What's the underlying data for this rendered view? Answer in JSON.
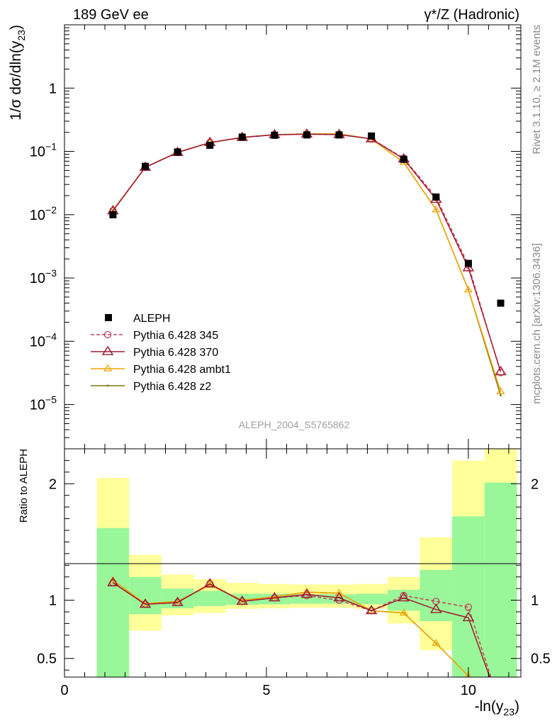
{
  "header": {
    "left": "189 GeV ee",
    "right": "γ*/Z (Hadronic)"
  },
  "side_text": {
    "rivet": "Rivet 3.1.10, ≥ 2.1M events",
    "mcplots": "mcplots.cern.ch [arXiv:1306.3436]"
  },
  "watermark": "ALEPH_2004_S5765862",
  "colors": {
    "data": "#000000",
    "p345": "#c0405a",
    "p370": "#a01830",
    "ambt1": "#f0a500",
    "z2": "#7a7a10",
    "band_inner": "#99f799",
    "band_outer": "#ffff99"
  },
  "chart_data": [
    {
      "type": "line",
      "name": "main",
      "ylabel": "1/σ  dσ/dln(y23)",
      "ylabel_main": "1/σ  dσ/dln(y",
      "ylabel_sub": "23",
      "ylabel_close": ")",
      "yscale": "log",
      "xlim": [
        0,
        11.3
      ],
      "ylim": [
        2e-06,
        10
      ],
      "ytick_labels": [
        {
          "v": 1e-05,
          "base": "10",
          "exp": "−5"
        },
        {
          "v": 0.0001,
          "base": "10",
          "exp": "−4"
        },
        {
          "v": 0.001,
          "base": "10",
          "exp": "−3"
        },
        {
          "v": 0.01,
          "base": "10",
          "exp": "−2"
        },
        {
          "v": 0.1,
          "base": "10",
          "exp": "−1"
        },
        {
          "v": 1,
          "base": "1",
          "exp": ""
        }
      ],
      "legend": [
        {
          "key": "data",
          "label": "ALEPH"
        },
        {
          "key": "p345",
          "label": "Pythia 6.428 345"
        },
        {
          "key": "p370",
          "label": "Pythia 6.428 370"
        },
        {
          "key": "ambt1",
          "label": "Pythia 6.428 ambt1"
        },
        {
          "key": "z2",
          "label": "Pythia 6.428 z2"
        }
      ],
      "data": {
        "x": [
          1.2,
          2.0,
          2.8,
          3.6,
          4.4,
          5.2,
          6.0,
          6.8,
          7.6,
          8.4,
          9.2,
          10.0,
          10.8
        ],
        "y": [
          0.01,
          0.058,
          0.098,
          0.125,
          0.168,
          0.18,
          0.182,
          0.182,
          0.175,
          0.075,
          0.019,
          0.0017,
          0.0004
        ],
        "ylo": [
          0.0098,
          0.057,
          0.097,
          0.124,
          0.166,
          0.178,
          0.18,
          0.18,
          0.173,
          0.073,
          0.018,
          0.0016,
          0.00036
        ],
        "yhi": [
          0.0102,
          0.059,
          0.099,
          0.126,
          0.17,
          0.182,
          0.184,
          0.184,
          0.177,
          0.077,
          0.02,
          0.0018,
          0.00044
        ]
      },
      "series": [
        {
          "key": "p345",
          "marker": "circle",
          "dash": true,
          "x": [
            1.2,
            2.0,
            2.8,
            3.6,
            4.4,
            5.2,
            6.0,
            6.8,
            7.6,
            8.4,
            9.2,
            10.0,
            10.8
          ],
          "y": [
            0.0115,
            0.056,
            0.096,
            0.138,
            0.166,
            0.183,
            0.187,
            0.184,
            0.158,
            0.078,
            0.0188,
            0.0016,
            3.2e-05
          ]
        },
        {
          "key": "p370",
          "marker": "triangle",
          "x": [
            1.2,
            2.0,
            2.8,
            3.6,
            4.4,
            5.2,
            6.0,
            6.8,
            7.6,
            8.4,
            9.2,
            10.0,
            10.8
          ],
          "y": [
            0.0115,
            0.056,
            0.096,
            0.138,
            0.166,
            0.183,
            0.187,
            0.184,
            0.158,
            0.076,
            0.0175,
            0.00145,
            3.3e-05
          ]
        },
        {
          "key": "ambt1",
          "marker": "smalltriangle",
          "x": [
            1.2,
            2.0,
            2.8,
            3.6,
            4.4,
            5.2,
            6.0,
            6.8,
            7.6,
            8.4,
            9.2,
            10.0,
            10.8
          ],
          "y": [
            0.0117,
            0.056,
            0.097,
            0.137,
            0.167,
            0.184,
            0.189,
            0.189,
            0.157,
            0.067,
            0.012,
            0.00065,
            1.6e-05
          ]
        },
        {
          "key": "z2",
          "marker": "dot",
          "x": [
            1.2,
            2.0,
            2.8,
            3.6,
            4.4,
            5.2,
            6.0,
            6.8,
            7.6,
            8.4,
            9.2,
            10.0,
            10.8
          ],
          "y": [
            0.0117,
            0.056,
            0.097,
            0.137,
            0.167,
            0.184,
            0.189,
            0.189,
            0.157,
            0.067,
            0.012,
            0.00065,
            1.4e-05
          ]
        }
      ]
    },
    {
      "type": "line",
      "name": "ratio",
      "ylabel": "Ratio to ALEPH",
      "xlabel_main": "-ln(y",
      "xlabel_sub": "23",
      "xlabel_close": ")",
      "xlim": [
        0,
        11.3
      ],
      "ylim": [
        0.34,
        2.3
      ],
      "xticks": [
        0,
        5,
        10
      ],
      "yticks": [
        0.5,
        1,
        2
      ],
      "ytick_labels": [
        "0.5",
        "1",
        "2"
      ],
      "bands": {
        "edges": [
          0.8,
          1.6,
          2.4,
          3.2,
          4.0,
          4.8,
          5.6,
          6.4,
          7.2,
          8.0,
          8.8,
          9.6,
          10.4,
          11.2
        ],
        "inner_lo": [
          0.34,
          0.88,
          0.93,
          0.95,
          0.96,
          0.965,
          0.97,
          0.97,
          0.965,
          0.91,
          0.82,
          0.34,
          0.34
        ],
        "inner_hi": [
          1.62,
          1.2,
          1.1,
          1.08,
          1.055,
          1.055,
          1.05,
          1.05,
          1.055,
          1.09,
          1.26,
          1.72,
          2.01
        ],
        "outer_lo": [
          0.34,
          0.74,
          0.87,
          0.89,
          0.925,
          0.93,
          0.935,
          0.935,
          0.925,
          0.8,
          0.57,
          0.34,
          0.34
        ],
        "outer_hi": [
          2.05,
          1.39,
          1.22,
          1.18,
          1.15,
          1.14,
          1.135,
          1.135,
          1.14,
          1.2,
          1.54,
          2.2,
          2.3
        ]
      },
      "series": [
        {
          "key": "p345",
          "marker": "circle",
          "dash": true,
          "x": [
            1.2,
            2.0,
            2.8,
            3.6,
            4.4,
            5.2,
            6.0,
            6.8,
            7.6,
            8.4,
            9.2,
            10.0,
            10.8
          ],
          "y": [
            1.15,
            0.965,
            0.98,
            1.14,
            0.99,
            1.02,
            1.04,
            1.0,
            0.91,
            1.04,
            0.99,
            0.94,
            0.08
          ]
        },
        {
          "key": "p370",
          "marker": "triangle",
          "x": [
            1.2,
            2.0,
            2.8,
            3.6,
            4.4,
            5.2,
            6.0,
            6.8,
            7.6,
            8.4,
            9.2,
            10.0,
            10.8
          ],
          "y": [
            1.15,
            0.965,
            0.98,
            1.14,
            0.99,
            1.02,
            1.05,
            1.02,
            0.91,
            1.02,
            0.92,
            0.85,
            0.08
          ]
        },
        {
          "key": "ambt1",
          "marker": "smalltriangle",
          "x": [
            1.2,
            2.0,
            2.8,
            3.6,
            4.4,
            5.2,
            6.0,
            6.8,
            7.6,
            8.4,
            9.2,
            10.0,
            10.8
          ],
          "y": [
            1.17,
            0.97,
            0.99,
            1.13,
            1.0,
            1.03,
            1.07,
            1.06,
            0.91,
            0.89,
            0.63,
            0.35,
            0.04
          ]
        },
        {
          "key": "z2",
          "marker": "dot",
          "x": [
            1.2,
            2.0,
            2.8,
            3.6,
            4.4,
            5.2,
            6.0,
            6.8,
            7.6,
            8.4,
            9.2,
            10.0,
            10.8
          ],
          "y": [
            1.17,
            0.97,
            0.99,
            1.13,
            1.0,
            1.03,
            1.07,
            1.06,
            0.91,
            0.89,
            0.63,
            0.35,
            0.04
          ]
        }
      ]
    }
  ]
}
